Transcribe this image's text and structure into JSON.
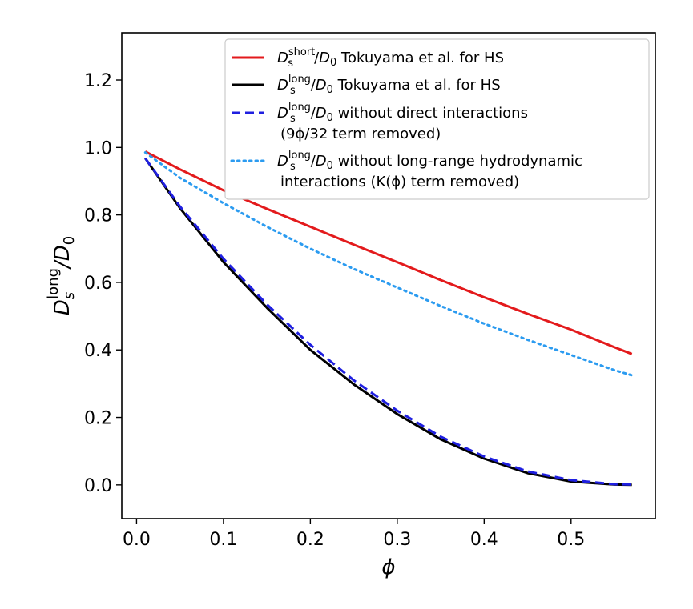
{
  "chart_data": {
    "type": "line",
    "xlabel": "ϕ",
    "ylabel": {
      "base": "D",
      "sub": "s",
      "sup": "long",
      "rest": "/D",
      "rest_sub": "0"
    },
    "xlim": [
      -0.017,
      0.597
    ],
    "ylim": [
      -0.1,
      1.34
    ],
    "xticks": [
      0.0,
      0.1,
      0.2,
      0.3,
      0.4,
      0.5
    ],
    "xtick_labels": [
      "0.0",
      "0.1",
      "0.2",
      "0.3",
      "0.4",
      "0.5"
    ],
    "yticks": [
      0.0,
      0.2,
      0.4,
      0.6,
      0.8,
      1.0,
      1.2
    ],
    "ytick_labels": [
      "0.0",
      "0.2",
      "0.4",
      "0.6",
      "0.8",
      "1.0",
      "1.2"
    ],
    "grid": false,
    "legend_position": "top-right",
    "x": [
      0.01,
      0.05,
      0.1,
      0.15,
      0.2,
      0.25,
      0.3,
      0.35,
      0.4,
      0.45,
      0.5,
      0.55,
      0.57
    ],
    "series": [
      {
        "id": "short",
        "color": "#e31a1c",
        "style": "solid",
        "legend": {
          "sup": "short",
          "rest": " Tokuyama et al. for HS"
        },
        "values": [
          0.988,
          0.935,
          0.873,
          0.818,
          0.765,
          0.712,
          0.66,
          0.607,
          0.556,
          0.507,
          0.46,
          0.408,
          0.388
        ]
      },
      {
        "id": "long",
        "color": "#000000",
        "style": "solid",
        "legend": {
          "sup": "long",
          "rest": " Tokuyama et al. for HS"
        },
        "values": [
          0.968,
          0.82,
          0.66,
          0.525,
          0.4,
          0.298,
          0.21,
          0.135,
          0.078,
          0.035,
          0.01,
          0.001,
          0.0
        ]
      },
      {
        "id": "no-direct",
        "color": "#1f1fe0",
        "style": "dashed",
        "legend": {
          "sup": "long",
          "rest": " without direct interactions",
          "line2": "(9ϕ/32 term removed)"
        },
        "values": [
          0.968,
          0.825,
          0.67,
          0.535,
          0.415,
          0.31,
          0.22,
          0.143,
          0.084,
          0.04,
          0.014,
          0.002,
          0.001
        ]
      },
      {
        "id": "no-hydro",
        "color": "#2b9bf0",
        "style": "dotted",
        "legend": {
          "sup": "long",
          "rest": " without long-range hydrodynamic",
          "line2": "interactions (K(ϕ) term removed)"
        },
        "values": [
          0.985,
          0.91,
          0.835,
          0.765,
          0.7,
          0.64,
          0.585,
          0.53,
          0.478,
          0.43,
          0.385,
          0.34,
          0.325
        ]
      }
    ]
  }
}
